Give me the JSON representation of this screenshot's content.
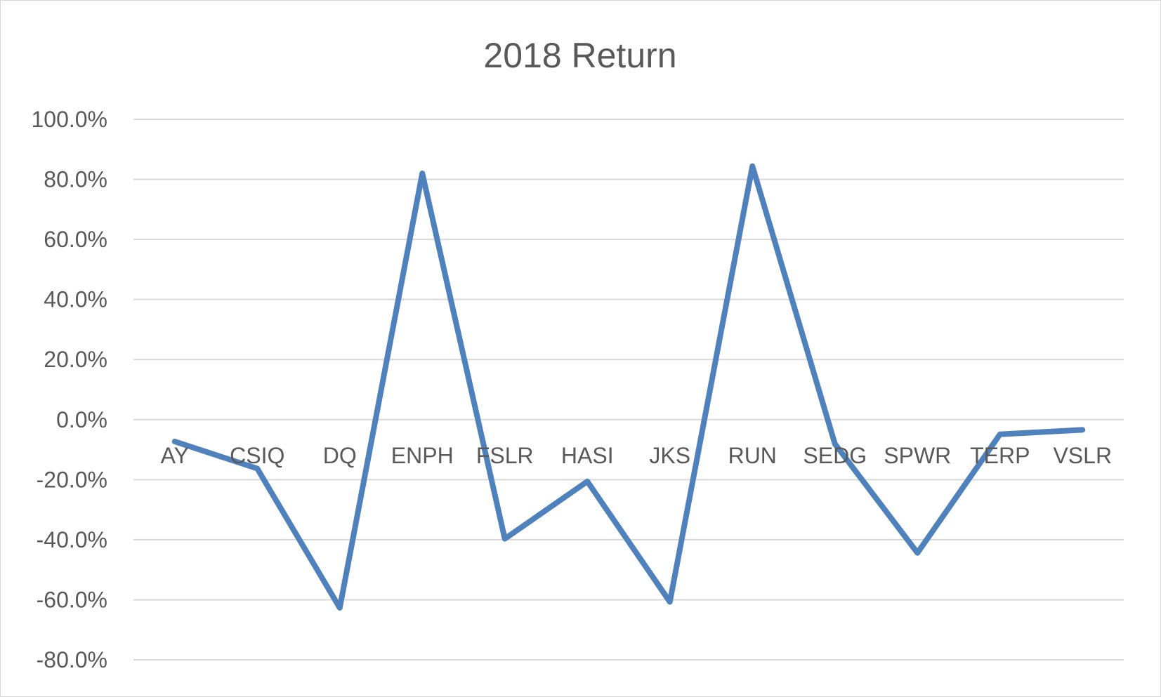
{
  "chart_data": {
    "type": "line",
    "title": "2018 Return",
    "xlabel": "",
    "ylabel": "",
    "categories": [
      "AY",
      "CSIQ",
      "DQ",
      "ENPH",
      "FSLR",
      "HASI",
      "JKS",
      "RUN",
      "SEDG",
      "SPWR",
      "TERP",
      "VSLR"
    ],
    "series": [
      {
        "color": "#4f81bd",
        "values": [
          -7.3,
          -16.3,
          -62.7,
          82.0,
          -39.7,
          -20.6,
          -60.7,
          84.4,
          -8.1,
          -44.4,
          -4.9,
          -3.4
        ]
      }
    ],
    "ylim": [
      -80,
      100
    ],
    "yticks": [
      100,
      80,
      60,
      40,
      20,
      0,
      -20,
      -40,
      -60,
      -80
    ],
    "ytick_labels": [
      "100.0%",
      "80.0%",
      "60.0%",
      "40.0%",
      "20.0%",
      "0.0%",
      "-20.0%",
      "-40.0%",
      "-60.0%",
      "-80.0%"
    ],
    "grid": true,
    "legend": "none"
  }
}
